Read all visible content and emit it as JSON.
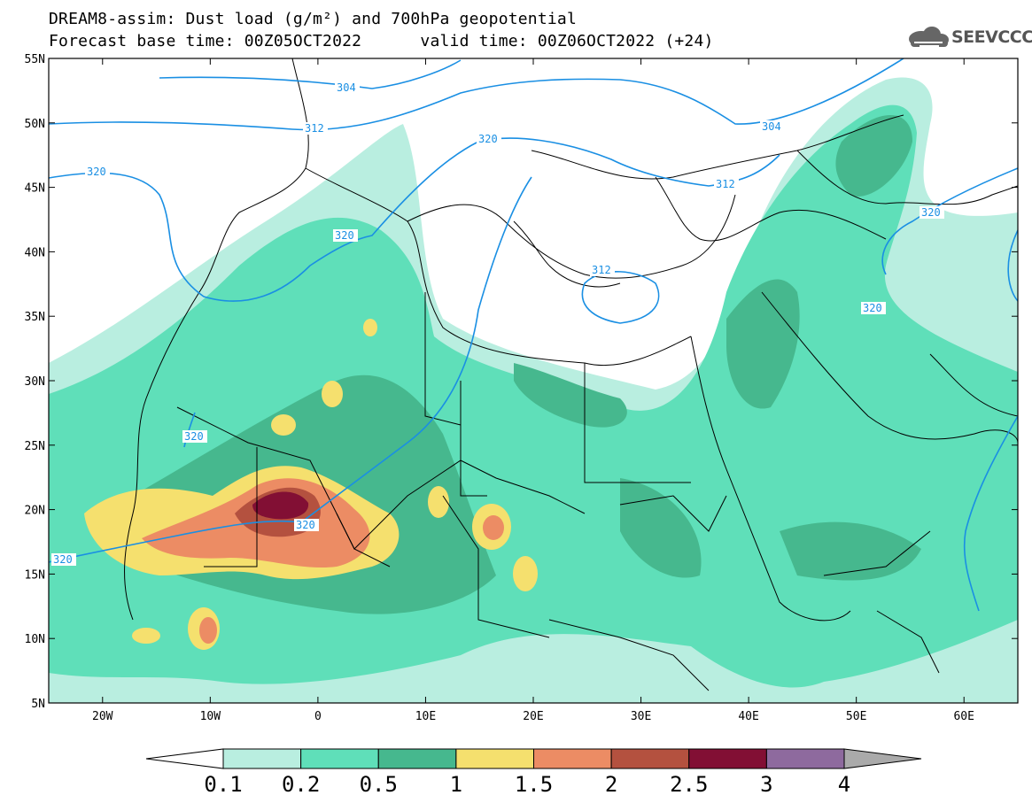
{
  "title": {
    "line1": "DREAM8-assim: Dust load (g/m²) and 700hPa geopotential",
    "line2_left": "Forecast base time: 00Z05OCT2022",
    "line2_right": "valid time: 00Z06OCT2022 (+24)"
  },
  "logo": {
    "text": "SEEVCCC",
    "icon": "cloud-logo-icon"
  },
  "map": {
    "lon_ticks": [
      "20W",
      "10W",
      "0",
      "10E",
      "20E",
      "30E",
      "40E",
      "50E",
      "60E"
    ],
    "lat_ticks": [
      "55N",
      "50N",
      "45N",
      "40N",
      "35N",
      "30N",
      "25N",
      "20N",
      "15N",
      "10N",
      "5N"
    ],
    "lon_range": [
      -25,
      65
    ],
    "lat_range": [
      5,
      55
    ],
    "contour_labels": [
      "304",
      "312",
      "320",
      "320",
      "320",
      "320",
      "320",
      "312",
      "304",
      "312",
      "320",
      "320"
    ],
    "contour_color": "#1a8fe3"
  },
  "colorbar": {
    "labels": [
      "0.1",
      "0.2",
      "0.5",
      "1",
      "1.5",
      "2",
      "2.5",
      "3",
      "4"
    ],
    "colors": [
      "#ffffff",
      "#b9eee0",
      "#5fdfb9",
      "#46b88e",
      "#f5e06e",
      "#ec8c64",
      "#b4513f",
      "#820f34",
      "#8e6a9e",
      "#aaaaaa"
    ]
  }
}
